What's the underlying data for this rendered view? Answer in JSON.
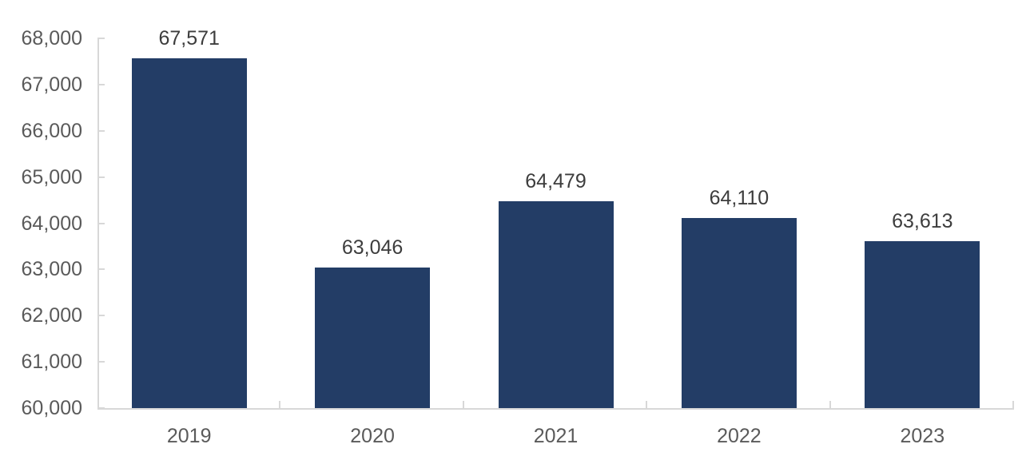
{
  "chart_data": {
    "type": "bar",
    "title": "",
    "xlabel": "",
    "ylabel": "",
    "categories": [
      "2019",
      "2020",
      "2021",
      "2022",
      "2023"
    ],
    "values": [
      67571,
      63046,
      64479,
      64110,
      63613
    ],
    "value_labels": [
      "67,571",
      "63,046",
      "64,479",
      "64,110",
      "63,613"
    ],
    "ylim": [
      60000,
      68000
    ],
    "y_tick_step": 1000,
    "y_tick_labels": [
      "60,000",
      "61,000",
      "62,000",
      "63,000",
      "64,000",
      "65,000",
      "66,000",
      "67,000",
      "68,000"
    ],
    "grid": false,
    "legend": "none",
    "colors": {
      "bar": "#233D66",
      "axis_line": "#D8D8D8",
      "axis_label": "#5A5A5A",
      "data_label": "#3D3D3D",
      "background": "#FFFFFF"
    }
  }
}
